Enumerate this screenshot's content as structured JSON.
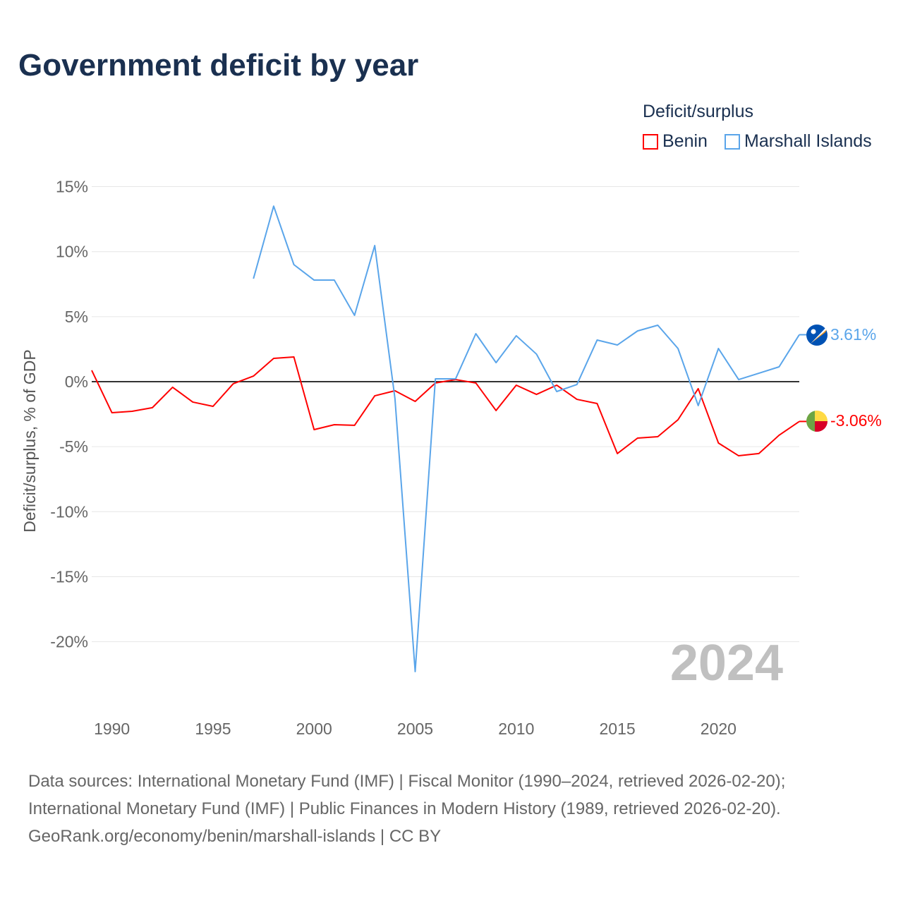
{
  "title": "Government deficit by year",
  "legend": {
    "title": "Deficit/surplus",
    "items": [
      {
        "name": "Benin",
        "color": "#ff0000"
      },
      {
        "name": "Marshall Islands",
        "color": "#5aa5ea"
      }
    ]
  },
  "watermark_year": "2024",
  "end_labels": {
    "benin": "-3.06%",
    "marshall": "3.61%"
  },
  "source_lines": [
    "Data sources: International Monetary Fund (IMF) | Fiscal Monitor (1990–2024, retrieved 2026-02-20);",
    "International Monetary Fund (IMF) | Public Finances in Modern History (1989, retrieved 2026-02-20).",
    "GeoRank.org/economy/benin/marshall-islands | CC BY"
  ],
  "chart_data": {
    "type": "line",
    "title": "Government deficit by year",
    "xlabel": "",
    "ylabel": "Deficit/surplus, % of GDP",
    "xlim": [
      1989,
      2024
    ],
    "ylim": [
      -22.5,
      15
    ],
    "grid": true,
    "legend_position": "top-right",
    "x_ticks": [
      1990,
      1995,
      2000,
      2005,
      2010,
      2015,
      2020
    ],
    "y_ticks": [
      15,
      10,
      5,
      0,
      -5,
      -10,
      -15,
      -20
    ],
    "y_tick_labels": [
      "15%",
      "10%",
      "5%",
      "0%",
      "-5%",
      "-10%",
      "-15%",
      "-20%"
    ],
    "series": [
      {
        "name": "Benin",
        "color": "#ff0000",
        "x": [
          1989,
          1990,
          1991,
          1992,
          1993,
          1994,
          1995,
          1996,
          1997,
          1998,
          1999,
          2000,
          2001,
          2002,
          2003,
          2004,
          2005,
          2006,
          2007,
          2008,
          2009,
          2010,
          2011,
          2012,
          2013,
          2014,
          2015,
          2016,
          2017,
          2018,
          2019,
          2020,
          2021,
          2022,
          2023,
          2024
        ],
        "values": [
          0.87,
          -2.39,
          -2.28,
          -2.0,
          -0.43,
          -1.57,
          -1.9,
          -0.16,
          0.43,
          1.79,
          1.9,
          -3.69,
          -3.31,
          -3.36,
          -1.09,
          -0.7,
          -1.52,
          -0.1,
          0.16,
          -0.1,
          -2.22,
          -0.27,
          -0.98,
          -0.27,
          -1.36,
          -1.68,
          -5.53,
          -4.34,
          -4.23,
          -2.93,
          -0.54,
          -4.72,
          -5.7,
          -5.53,
          -4.12,
          -3.06
        ]
      },
      {
        "name": "Marshall Islands",
        "color": "#5aa5ea",
        "x": [
          1997,
          1998,
          1999,
          2000,
          2001,
          2002,
          2003,
          2004,
          2005,
          2006,
          2007,
          2008,
          2009,
          2010,
          2011,
          2012,
          2013,
          2014,
          2015,
          2016,
          2017,
          2018,
          2019,
          2020,
          2021,
          2022,
          2023,
          2024
        ],
        "values": [
          7.92,
          13.5,
          9.0,
          7.81,
          7.81,
          5.1,
          10.47,
          -1.3,
          -22.3,
          0.22,
          0.22,
          3.69,
          1.46,
          3.53,
          2.12,
          -0.76,
          -0.22,
          3.2,
          2.82,
          3.9,
          4.34,
          2.55,
          -1.84,
          2.55,
          0.16,
          0.65,
          1.14,
          3.61
        ]
      }
    ]
  }
}
